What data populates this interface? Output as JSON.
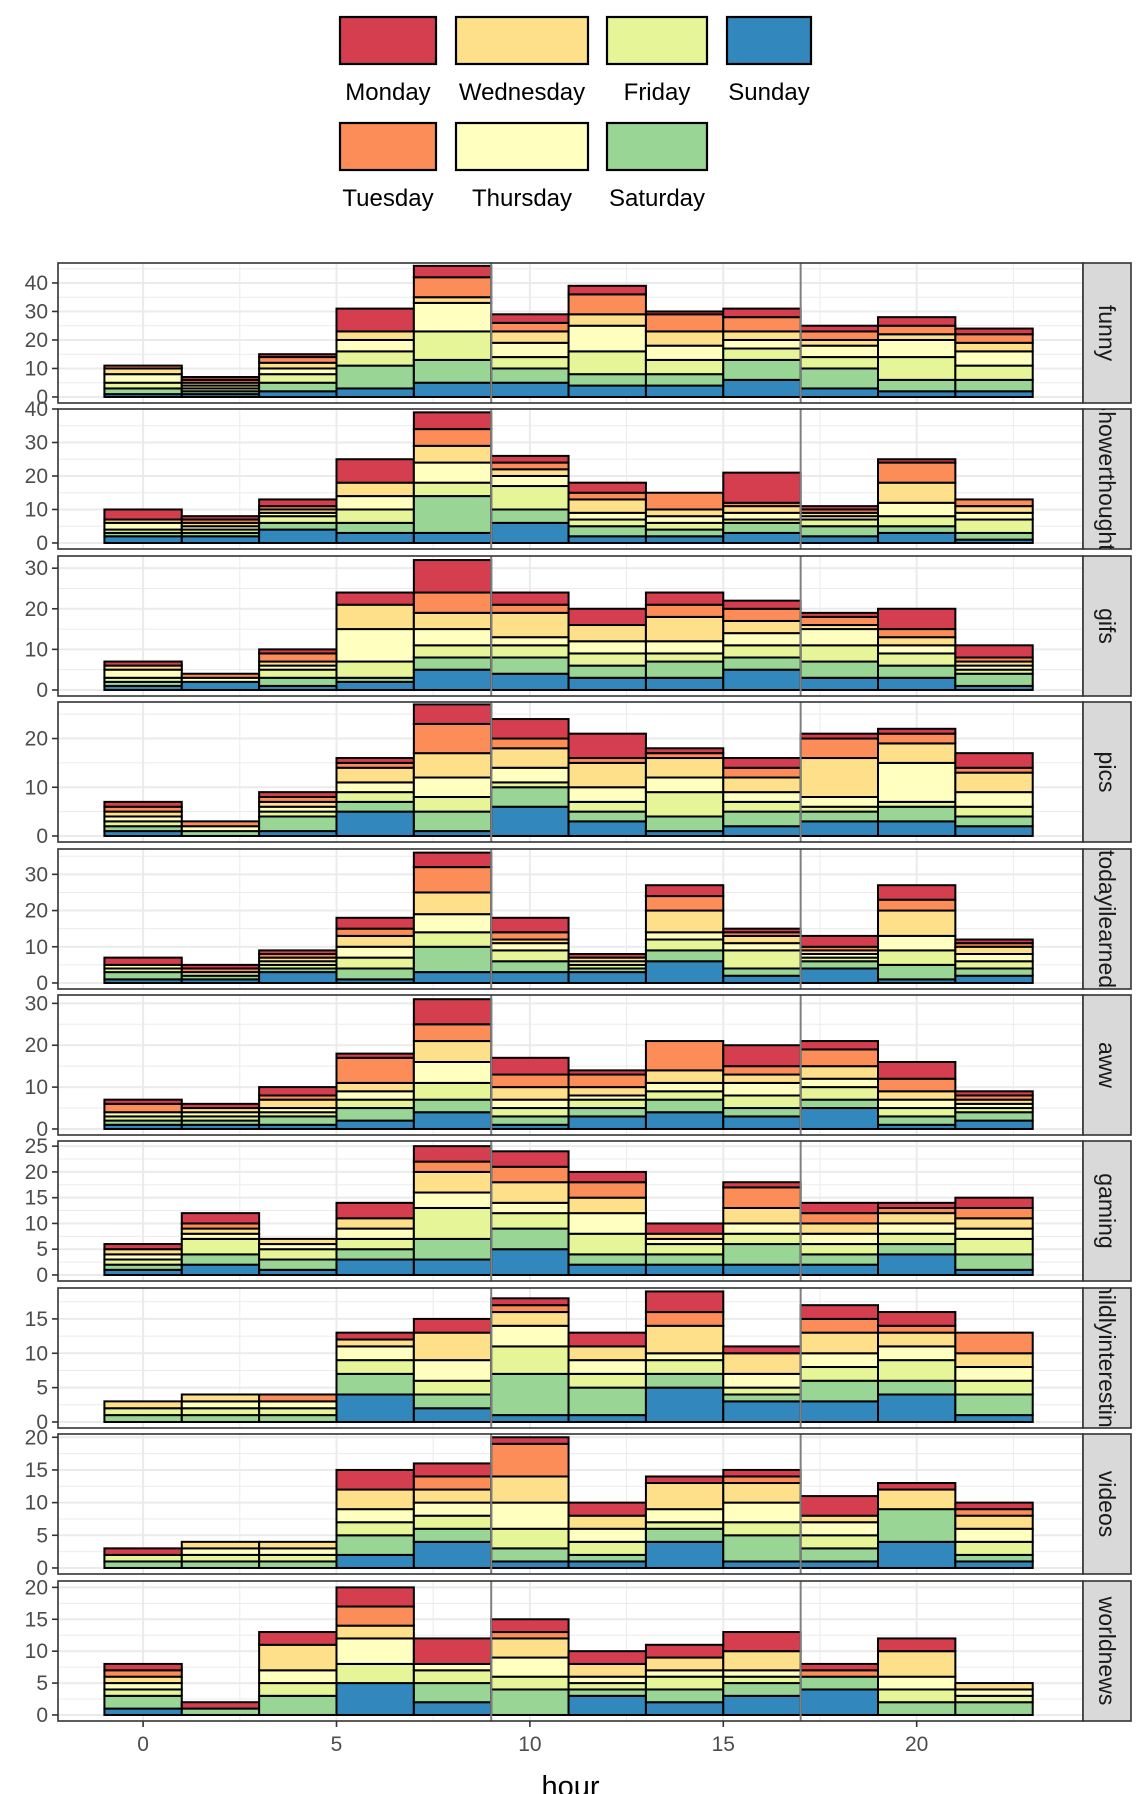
{
  "chart_data": {
    "type": "bar",
    "stacked": true,
    "xlabel": "hour",
    "x_ticks": [
      0,
      5,
      10,
      15,
      20
    ],
    "x_range": [
      -2.2,
      24.3
    ],
    "bin_width": 2,
    "bin_centers": [
      0,
      2,
      4,
      6,
      8,
      10,
      12,
      14,
      16,
      18,
      20,
      22
    ],
    "vlines": [
      9,
      17
    ],
    "legend": {
      "position": "top",
      "rows": [
        [
          "Monday",
          "Wednesday",
          "Friday",
          "Sunday"
        ],
        [
          "Tuesday",
          "Thursday",
          "Saturday"
        ]
      ]
    },
    "series_colors": {
      "Sunday": "#3288BD",
      "Saturday": "#99D594",
      "Friday": "#E6F598",
      "Thursday": "#FFFFBF",
      "Wednesday": "#FEE08B",
      "Tuesday": "#FC8D59",
      "Monday": "#D53E4F"
    },
    "stack_order": [
      "Sunday",
      "Saturday",
      "Friday",
      "Thursday",
      "Wednesday",
      "Tuesday",
      "Monday"
    ],
    "panels": [
      {
        "label": "funny",
        "ymax": 47,
        "yticks": [
          0,
          10,
          20,
          30,
          40
        ],
        "totals": [
          11,
          7,
          15,
          31,
          46,
          29,
          39,
          30,
          31,
          25,
          28,
          24
        ],
        "values": {
          "Sunday": [
            1,
            1,
            2,
            3,
            5,
            5,
            4,
            4,
            6,
            3,
            2,
            2
          ],
          "Saturday": [
            2,
            1,
            3,
            8,
            8,
            5,
            4,
            4,
            7,
            7,
            4,
            4
          ],
          "Friday": [
            2,
            1,
            3,
            5,
            10,
            4,
            8,
            5,
            4,
            4,
            8,
            5
          ],
          "Thursday": [
            3,
            1,
            2,
            4,
            10,
            5,
            9,
            5,
            3,
            4,
            6,
            5
          ],
          "Wednesday": [
            2,
            1,
            2,
            3,
            2,
            4,
            4,
            5,
            3,
            2,
            2,
            3
          ],
          "Tuesday": [
            1,
            1,
            2,
            0,
            7,
            3,
            7,
            6,
            5,
            3,
            3,
            3
          ],
          "Monday": [
            0,
            1,
            1,
            8,
            4,
            3,
            3,
            1,
            3,
            2,
            3,
            2
          ]
        }
      },
      {
        "label": "Showerthoughts",
        "ymax": 40,
        "yticks": [
          0,
          10,
          20,
          30,
          40
        ],
        "totals": [
          10,
          8,
          13,
          25,
          39,
          26,
          18,
          15,
          21,
          11,
          25,
          13
        ],
        "values": {
          "Sunday": [
            2,
            2,
            4,
            3,
            3,
            6,
            2,
            2,
            3,
            2,
            3,
            1
          ],
          "Saturday": [
            1,
            1,
            2,
            3,
            11,
            4,
            3,
            2,
            3,
            3,
            2,
            2
          ],
          "Friday": [
            1,
            1,
            2,
            4,
            4,
            7,
            2,
            2,
            1,
            2,
            3,
            4
          ],
          "Thursday": [
            2,
            1,
            1,
            4,
            6,
            3,
            2,
            2,
            2,
            1,
            4,
            2
          ],
          "Wednesday": [
            1,
            1,
            1,
            4,
            5,
            2,
            4,
            2,
            2,
            1,
            6,
            2
          ],
          "Tuesday": [
            0,
            1,
            1,
            0,
            5,
            2,
            2,
            5,
            1,
            1,
            6,
            2
          ],
          "Monday": [
            3,
            1,
            2,
            7,
            5,
            2,
            3,
            0,
            9,
            1,
            1,
            0
          ]
        }
      },
      {
        "label": "gifs",
        "ymax": 33,
        "yticks": [
          0,
          10,
          20,
          30
        ],
        "totals": [
          7,
          4,
          10,
          24,
          32,
          24,
          20,
          24,
          22,
          19,
          20,
          11
        ],
        "values": {
          "Sunday": [
            1,
            2,
            1,
            2,
            5,
            4,
            3,
            3,
            5,
            3,
            3,
            1
          ],
          "Saturday": [
            1,
            0,
            2,
            1,
            3,
            4,
            3,
            4,
            3,
            4,
            3,
            3
          ],
          "Friday": [
            1,
            0,
            2,
            4,
            3,
            3,
            3,
            2,
            3,
            4,
            3,
            1
          ],
          "Thursday": [
            2,
            1,
            1,
            8,
            4,
            2,
            3,
            3,
            3,
            4,
            2,
            1
          ],
          "Wednesday": [
            1,
            0,
            1,
            6,
            4,
            6,
            4,
            6,
            3,
            1,
            2,
            1
          ],
          "Tuesday": [
            0,
            1,
            2,
            0,
            5,
            2,
            0,
            3,
            3,
            2,
            2,
            1
          ],
          "Monday": [
            1,
            0,
            1,
            3,
            8,
            3,
            4,
            3,
            2,
            1,
            5,
            3
          ]
        }
      },
      {
        "label": "pics",
        "ymax": 27.5,
        "yticks": [
          0,
          10,
          20
        ],
        "totals": [
          7,
          3,
          9,
          16,
          27,
          24,
          21,
          18,
          16,
          21,
          22,
          17
        ],
        "values": {
          "Sunday": [
            1,
            0,
            1,
            5,
            1,
            6,
            3,
            1,
            2,
            3,
            3,
            2
          ],
          "Saturday": [
            1,
            1,
            3,
            2,
            4,
            4,
            2,
            3,
            3,
            2,
            3,
            2
          ],
          "Friday": [
            1,
            0,
            1,
            2,
            3,
            1,
            2,
            5,
            2,
            1,
            1,
            2
          ],
          "Thursday": [
            1,
            1,
            1,
            2,
            4,
            3,
            3,
            3,
            2,
            2,
            8,
            3
          ],
          "Wednesday": [
            1,
            0,
            1,
            3,
            5,
            4,
            5,
            4,
            3,
            8,
            4,
            4
          ],
          "Tuesday": [
            1,
            1,
            1,
            1,
            6,
            2,
            1,
            1,
            2,
            4,
            2,
            1
          ],
          "Monday": [
            1,
            0,
            1,
            1,
            4,
            4,
            5,
            1,
            2,
            1,
            1,
            3
          ]
        }
      },
      {
        "label": "todayilearned",
        "ymax": 37,
        "yticks": [
          0,
          10,
          20,
          30
        ],
        "totals": [
          7,
          5,
          9,
          18,
          36,
          18,
          8,
          27,
          15,
          13,
          27,
          12
        ],
        "values": {
          "Sunday": [
            1,
            1,
            3,
            1,
            3,
            3,
            3,
            6,
            2,
            4,
            1,
            2
          ],
          "Saturday": [
            2,
            1,
            1,
            3,
            7,
            3,
            1,
            3,
            2,
            2,
            4,
            2
          ],
          "Friday": [
            1,
            1,
            1,
            3,
            4,
            3,
            1,
            3,
            5,
            1,
            4,
            2
          ],
          "Thursday": [
            1,
            0,
            1,
            3,
            5,
            2,
            1,
            2,
            2,
            1,
            4,
            2
          ],
          "Wednesday": [
            0,
            0,
            1,
            3,
            6,
            1,
            1,
            6,
            2,
            1,
            7,
            2
          ],
          "Tuesday": [
            0,
            1,
            1,
            2,
            7,
            2,
            0,
            4,
            1,
            1,
            3,
            1
          ],
          "Monday": [
            2,
            1,
            1,
            3,
            4,
            4,
            1,
            3,
            1,
            3,
            4,
            1
          ]
        }
      },
      {
        "label": "aww",
        "ymax": 32,
        "yticks": [
          0,
          10,
          20,
          30
        ],
        "totals": [
          7,
          6,
          10,
          18,
          31,
          17,
          14,
          21,
          20,
          21,
          16,
          9
        ],
        "values": {
          "Sunday": [
            1,
            1,
            1,
            2,
            4,
            1,
            3,
            4,
            3,
            5,
            1,
            2
          ],
          "Saturday": [
            1,
            1,
            2,
            3,
            3,
            2,
            2,
            3,
            2,
            2,
            2,
            2
          ],
          "Friday": [
            1,
            1,
            1,
            2,
            4,
            2,
            2,
            2,
            3,
            3,
            2,
            1
          ],
          "Thursday": [
            1,
            1,
            1,
            2,
            5,
            2,
            1,
            2,
            3,
            2,
            2,
            1
          ],
          "Wednesday": [
            0,
            1,
            2,
            2,
            5,
            3,
            2,
            3,
            2,
            3,
            2,
            1
          ],
          "Tuesday": [
            2,
            0,
            1,
            6,
            4,
            3,
            3,
            7,
            2,
            4,
            3,
            1
          ],
          "Monday": [
            1,
            1,
            2,
            1,
            6,
            4,
            1,
            0,
            5,
            2,
            4,
            1
          ]
        }
      },
      {
        "label": "gaming",
        "ymax": 26,
        "yticks": [
          0,
          5,
          10,
          15,
          20,
          25
        ],
        "totals": [
          6,
          12,
          7,
          14,
          25,
          24,
          20,
          10,
          18,
          14,
          14,
          15
        ],
        "values": {
          "Sunday": [
            1,
            2,
            1,
            3,
            3,
            5,
            2,
            2,
            2,
            2,
            4,
            1
          ],
          "Saturday": [
            1,
            2,
            2,
            2,
            4,
            4,
            2,
            2,
            4,
            2,
            2,
            3
          ],
          "Friday": [
            1,
            3,
            2,
            2,
            6,
            3,
            4,
            2,
            2,
            2,
            2,
            3
          ],
          "Thursday": [
            1,
            1,
            1,
            2,
            3,
            2,
            4,
            1,
            2,
            2,
            2,
            2
          ],
          "Wednesday": [
            1,
            1,
            1,
            2,
            4,
            4,
            3,
            1,
            3,
            2,
            2,
            2
          ],
          "Tuesday": [
            0,
            1,
            0,
            0,
            2,
            3,
            3,
            0,
            4,
            2,
            1,
            2
          ],
          "Monday": [
            1,
            2,
            0,
            3,
            3,
            3,
            2,
            2,
            1,
            2,
            1,
            2
          ]
        }
      },
      {
        "label": "mildlyinteresting",
        "ymax": 19.5,
        "yticks": [
          0,
          5,
          10,
          15
        ],
        "totals": [
          3,
          4,
          4,
          13,
          15,
          18,
          13,
          19,
          11,
          17,
          16,
          13
        ],
        "values": {
          "Sunday": [
            0,
            0,
            0,
            4,
            2,
            1,
            1,
            5,
            3,
            3,
            4,
            1
          ],
          "Saturday": [
            1,
            1,
            1,
            3,
            2,
            6,
            4,
            2,
            1,
            3,
            2,
            3
          ],
          "Friday": [
            1,
            1,
            1,
            2,
            2,
            4,
            2,
            2,
            1,
            2,
            3,
            2
          ],
          "Thursday": [
            0,
            1,
            1,
            2,
            3,
            3,
            2,
            1,
            2,
            2,
            2,
            2
          ],
          "Wednesday": [
            1,
            1,
            0,
            1,
            4,
            2,
            2,
            4,
            3,
            3,
            2,
            2
          ],
          "Tuesday": [
            0,
            0,
            1,
            0,
            0,
            1,
            0,
            2,
            0,
            2,
            1,
            3
          ],
          "Monday": [
            0,
            0,
            0,
            1,
            2,
            1,
            2,
            3,
            1,
            2,
            2,
            0
          ]
        }
      },
      {
        "label": "videos",
        "ymax": 20.5,
        "yticks": [
          0,
          5,
          10,
          15,
          20
        ],
        "totals": [
          3,
          4,
          4,
          15,
          16,
          20,
          10,
          14,
          15,
          11,
          13,
          10
        ],
        "values": {
          "Sunday": [
            0,
            0,
            0,
            2,
            4,
            1,
            1,
            4,
            1,
            1,
            4,
            1
          ],
          "Saturday": [
            1,
            1,
            1,
            3,
            2,
            2,
            1,
            2,
            4,
            2,
            5,
            1
          ],
          "Friday": [
            1,
            1,
            1,
            2,
            2,
            3,
            2,
            1,
            2,
            2,
            0,
            2
          ],
          "Thursday": [
            0,
            1,
            1,
            2,
            2,
            4,
            2,
            2,
            3,
            2,
            0,
            2
          ],
          "Wednesday": [
            0,
            1,
            1,
            3,
            2,
            4,
            2,
            4,
            3,
            1,
            3,
            2
          ],
          "Tuesday": [
            0,
            0,
            0,
            0,
            2,
            5,
            0,
            0,
            1,
            0,
            0,
            1
          ],
          "Monday": [
            1,
            0,
            0,
            3,
            2,
            1,
            2,
            1,
            1,
            3,
            1,
            1
          ]
        }
      },
      {
        "label": "worldnews",
        "ymax": 21,
        "yticks": [
          0,
          5,
          10,
          15,
          20
        ],
        "totals": [
          8,
          2,
          13,
          20,
          12,
          15,
          10,
          11,
          13,
          8,
          12,
          5
        ],
        "values": {
          "Sunday": [
            1,
            0,
            0,
            5,
            2,
            0,
            3,
            2,
            3,
            4,
            0,
            0
          ],
          "Saturday": [
            2,
            1,
            3,
            0,
            3,
            4,
            1,
            2,
            2,
            2,
            2,
            2
          ],
          "Friday": [
            1,
            0,
            2,
            3,
            2,
            2,
            1,
            2,
            1,
            0,
            2,
            1
          ],
          "Thursday": [
            1,
            0,
            2,
            4,
            1,
            3,
            1,
            1,
            1,
            0,
            2,
            1
          ],
          "Wednesday": [
            1,
            0,
            4,
            2,
            0,
            3,
            2,
            2,
            3,
            0,
            4,
            1
          ],
          "Tuesday": [
            1,
            0,
            0,
            3,
            0,
            1,
            0,
            0,
            0,
            1,
            0,
            0
          ],
          "Monday": [
            1,
            1,
            2,
            3,
            4,
            2,
            2,
            2,
            3,
            1,
            2,
            0
          ]
        }
      }
    ]
  }
}
